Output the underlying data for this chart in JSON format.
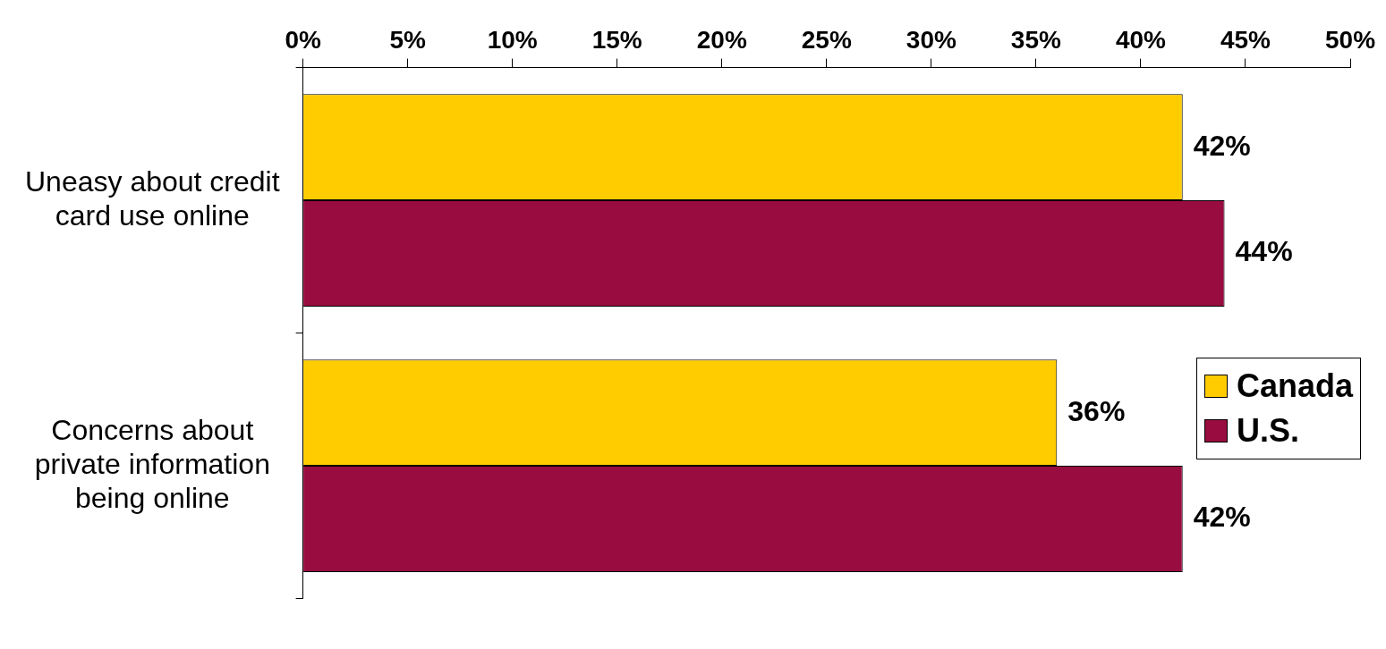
{
  "chart_data": {
    "type": "bar",
    "orientation": "horizontal",
    "categories": [
      "Uneasy about credit card use online",
      "Concerns about private information being online"
    ],
    "series": [
      {
        "name": "Canada",
        "color": "#ffcc00",
        "values": [
          42,
          36
        ],
        "value_labels": [
          "42%",
          "36%"
        ]
      },
      {
        "name": "U.S.",
        "color": "#990c3f",
        "values": [
          44,
          42
        ],
        "value_labels": [
          "44%",
          "42%"
        ]
      }
    ],
    "xlim": [
      0,
      50
    ],
    "xticks": [
      {
        "value": 0,
        "label": "0%"
      },
      {
        "value": 5,
        "label": "5%"
      },
      {
        "value": 10,
        "label": "10%"
      },
      {
        "value": 15,
        "label": "15%"
      },
      {
        "value": 20,
        "label": "20%"
      },
      {
        "value": 25,
        "label": "25%"
      },
      {
        "value": 30,
        "label": "30%"
      },
      {
        "value": 35,
        "label": "35%"
      },
      {
        "value": 40,
        "label": "40%"
      },
      {
        "value": 45,
        "label": "45%"
      },
      {
        "value": 50,
        "label": "50%"
      }
    ],
    "grid": false,
    "legend": "right"
  }
}
